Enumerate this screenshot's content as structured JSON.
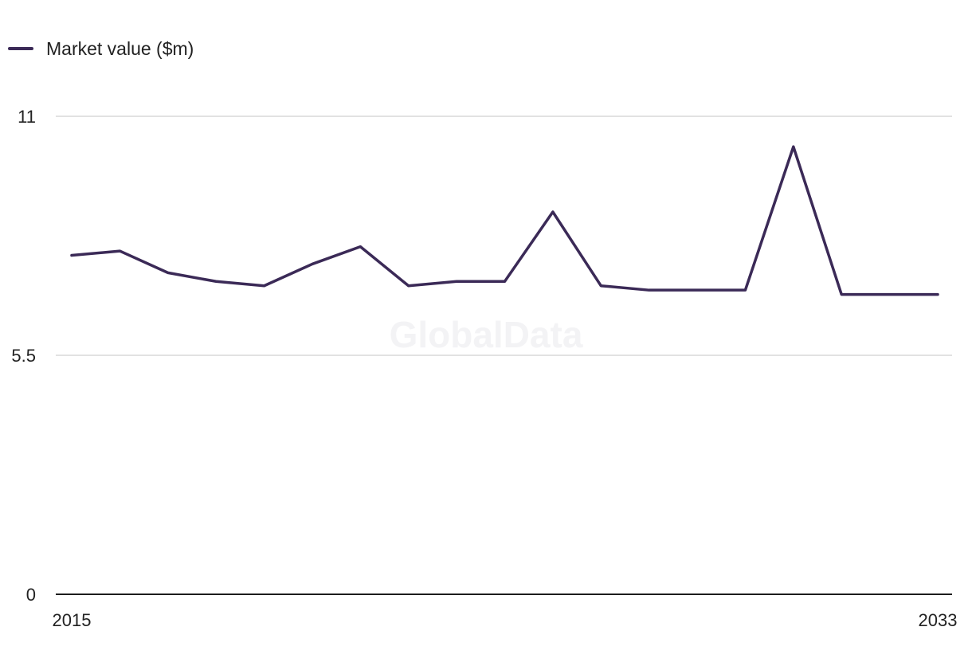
{
  "legend": {
    "label": "Market value ($m)"
  },
  "watermark": "GlobalData",
  "colors": {
    "line": "#3b2a57",
    "grid": "#d9d9d9",
    "axis": "#1c1c1c"
  },
  "chart_data": {
    "type": "line",
    "title": "",
    "xlabel": "",
    "ylabel": "",
    "x": [
      2015,
      2016,
      2017,
      2018,
      2019,
      2020,
      2021,
      2022,
      2023,
      2024,
      2025,
      2026,
      2027,
      2028,
      2029,
      2030,
      2031,
      2032,
      2033
    ],
    "series": [
      {
        "name": "Market value ($m)",
        "values": [
          7.8,
          7.9,
          7.4,
          7.2,
          7.1,
          7.6,
          8.0,
          7.1,
          7.2,
          7.2,
          8.8,
          7.1,
          7.0,
          7.0,
          7.0,
          10.3,
          6.9,
          6.9,
          6.9
        ]
      }
    ],
    "ylim": [
      0,
      11
    ],
    "yticks": [
      "0",
      "5.5",
      "11"
    ],
    "yticks_values": [
      0,
      5.5,
      11
    ],
    "xtick_labels": [
      "2015",
      "2033"
    ],
    "xtick_values": [
      2015,
      2033
    ],
    "grid": true,
    "legend_position": "top-left"
  }
}
